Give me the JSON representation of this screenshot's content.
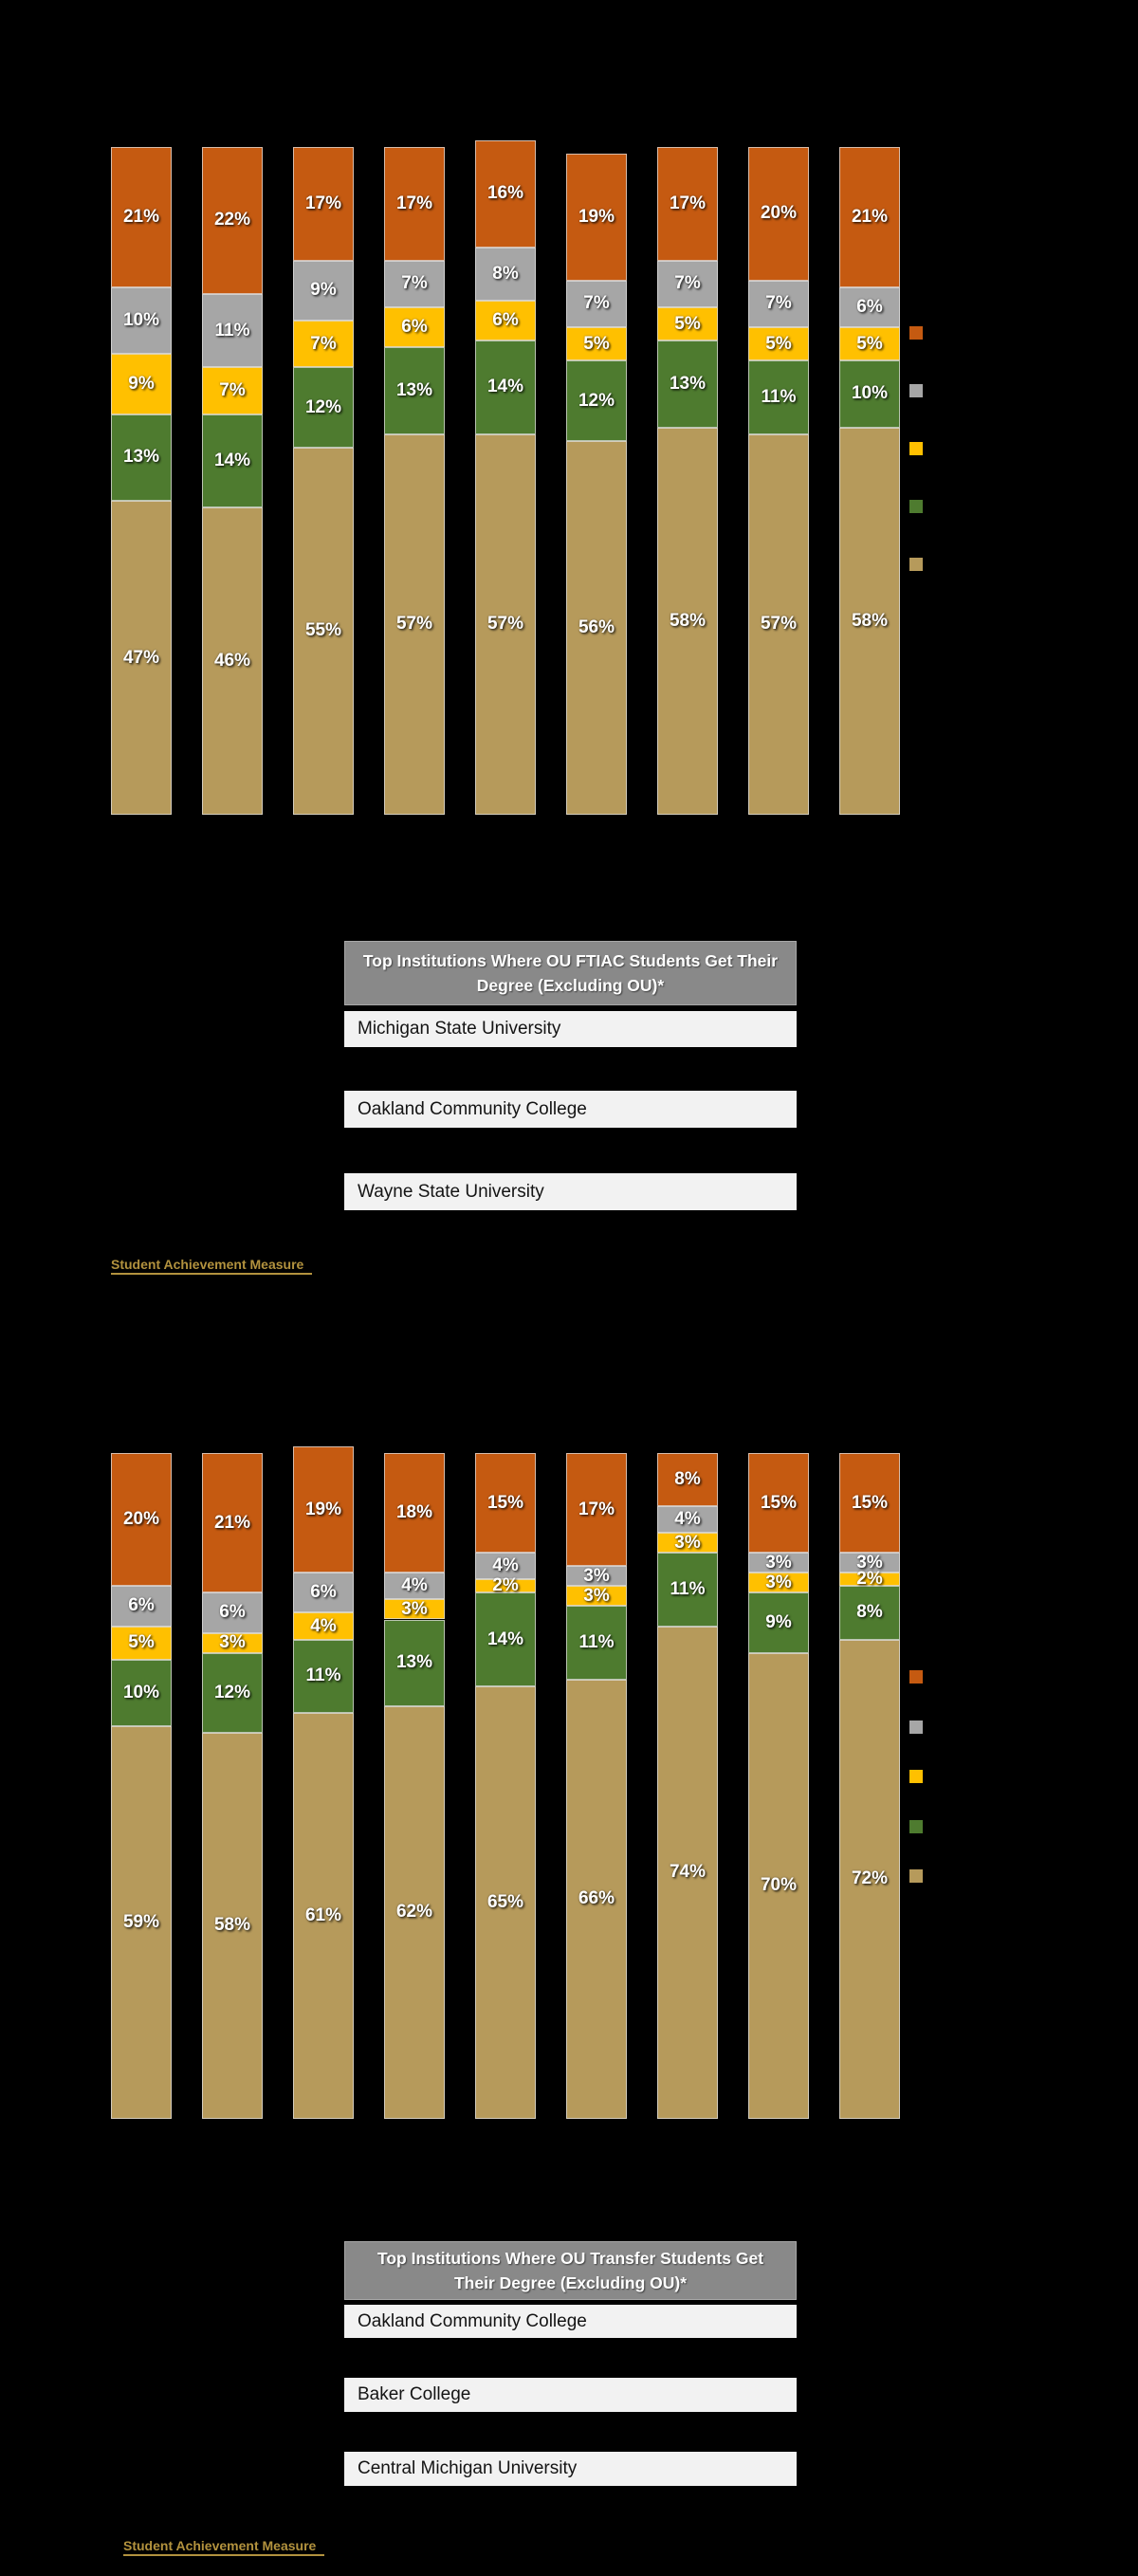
{
  "page": {
    "background": "#000000"
  },
  "palette": {
    "orange": "#C55A11",
    "gray": "#A6A6A6",
    "gold": "#FFC000",
    "green": "#4E7B2F",
    "tan": "#B69A5B"
  },
  "chart_data": [
    {
      "id": "ftiac",
      "type": "bar",
      "stacked": true,
      "bar_count": 9,
      "label_suffix": "%",
      "ylim": [
        0,
        100
      ],
      "axis_text_visible": false,
      "legend_position": "right",
      "legend_text_visible": false,
      "legend_colors_top_to_bottom": [
        "orange",
        "gray",
        "gold",
        "green",
        "tan"
      ],
      "series": [
        {
          "name": "segment-1-bottom",
          "color_key": "tan",
          "values": [
            47,
            46,
            55,
            57,
            57,
            56,
            58,
            57,
            58
          ]
        },
        {
          "name": "segment-2",
          "color_key": "green",
          "values": [
            13,
            14,
            12,
            13,
            14,
            12,
            13,
            11,
            10
          ]
        },
        {
          "name": "segment-3",
          "color_key": "gold",
          "values": [
            9,
            7,
            7,
            6,
            6,
            5,
            5,
            5,
            5
          ]
        },
        {
          "name": "segment-4",
          "color_key": "gray",
          "values": [
            10,
            11,
            9,
            7,
            8,
            7,
            7,
            7,
            6
          ]
        },
        {
          "name": "segment-5-top",
          "color_key": "orange",
          "values": [
            21,
            22,
            17,
            17,
            16,
            19,
            17,
            20,
            21
          ]
        }
      ]
    },
    {
      "id": "transfer",
      "type": "bar",
      "stacked": true,
      "bar_count": 9,
      "label_suffix": "%",
      "ylim": [
        0,
        100
      ],
      "axis_text_visible": false,
      "legend_position": "right",
      "legend_text_visible": false,
      "legend_colors_top_to_bottom": [
        "orange",
        "gray",
        "gold",
        "green",
        "tan"
      ],
      "series": [
        {
          "name": "segment-1-bottom",
          "color_key": "tan",
          "values": [
            59,
            58,
            61,
            62,
            65,
            66,
            74,
            70,
            72
          ]
        },
        {
          "name": "segment-2",
          "color_key": "green",
          "values": [
            10,
            12,
            11,
            13,
            14,
            11,
            11,
            9,
            8
          ]
        },
        {
          "name": "segment-3",
          "color_key": "gold",
          "values": [
            5,
            3,
            4,
            3,
            2,
            3,
            3,
            3,
            2
          ]
        },
        {
          "name": "segment-4",
          "color_key": "gray",
          "values": [
            6,
            6,
            6,
            4,
            4,
            3,
            4,
            3,
            3
          ]
        },
        {
          "name": "segment-5-top",
          "color_key": "orange",
          "values": [
            20,
            21,
            19,
            18,
            15,
            17,
            8,
            15,
            15
          ]
        }
      ]
    }
  ],
  "tables": {
    "ftiac": {
      "header": "Top Institutions Where OU FTIAC Students Get Their Degree (Excluding OU)*",
      "rows": [
        "Michigan State University",
        "Oakland Community College",
        "Wayne State University"
      ]
    },
    "transfer": {
      "header": "Top Institutions Where OU Transfer Students Get Their Degree (Excluding OU)*",
      "rows": [
        "Oakland Community College",
        "Baker College",
        "Central Michigan University"
      ]
    }
  },
  "links": {
    "ftiac": "Student Achievement Measure",
    "transfer": "Student Achievement Measure"
  }
}
